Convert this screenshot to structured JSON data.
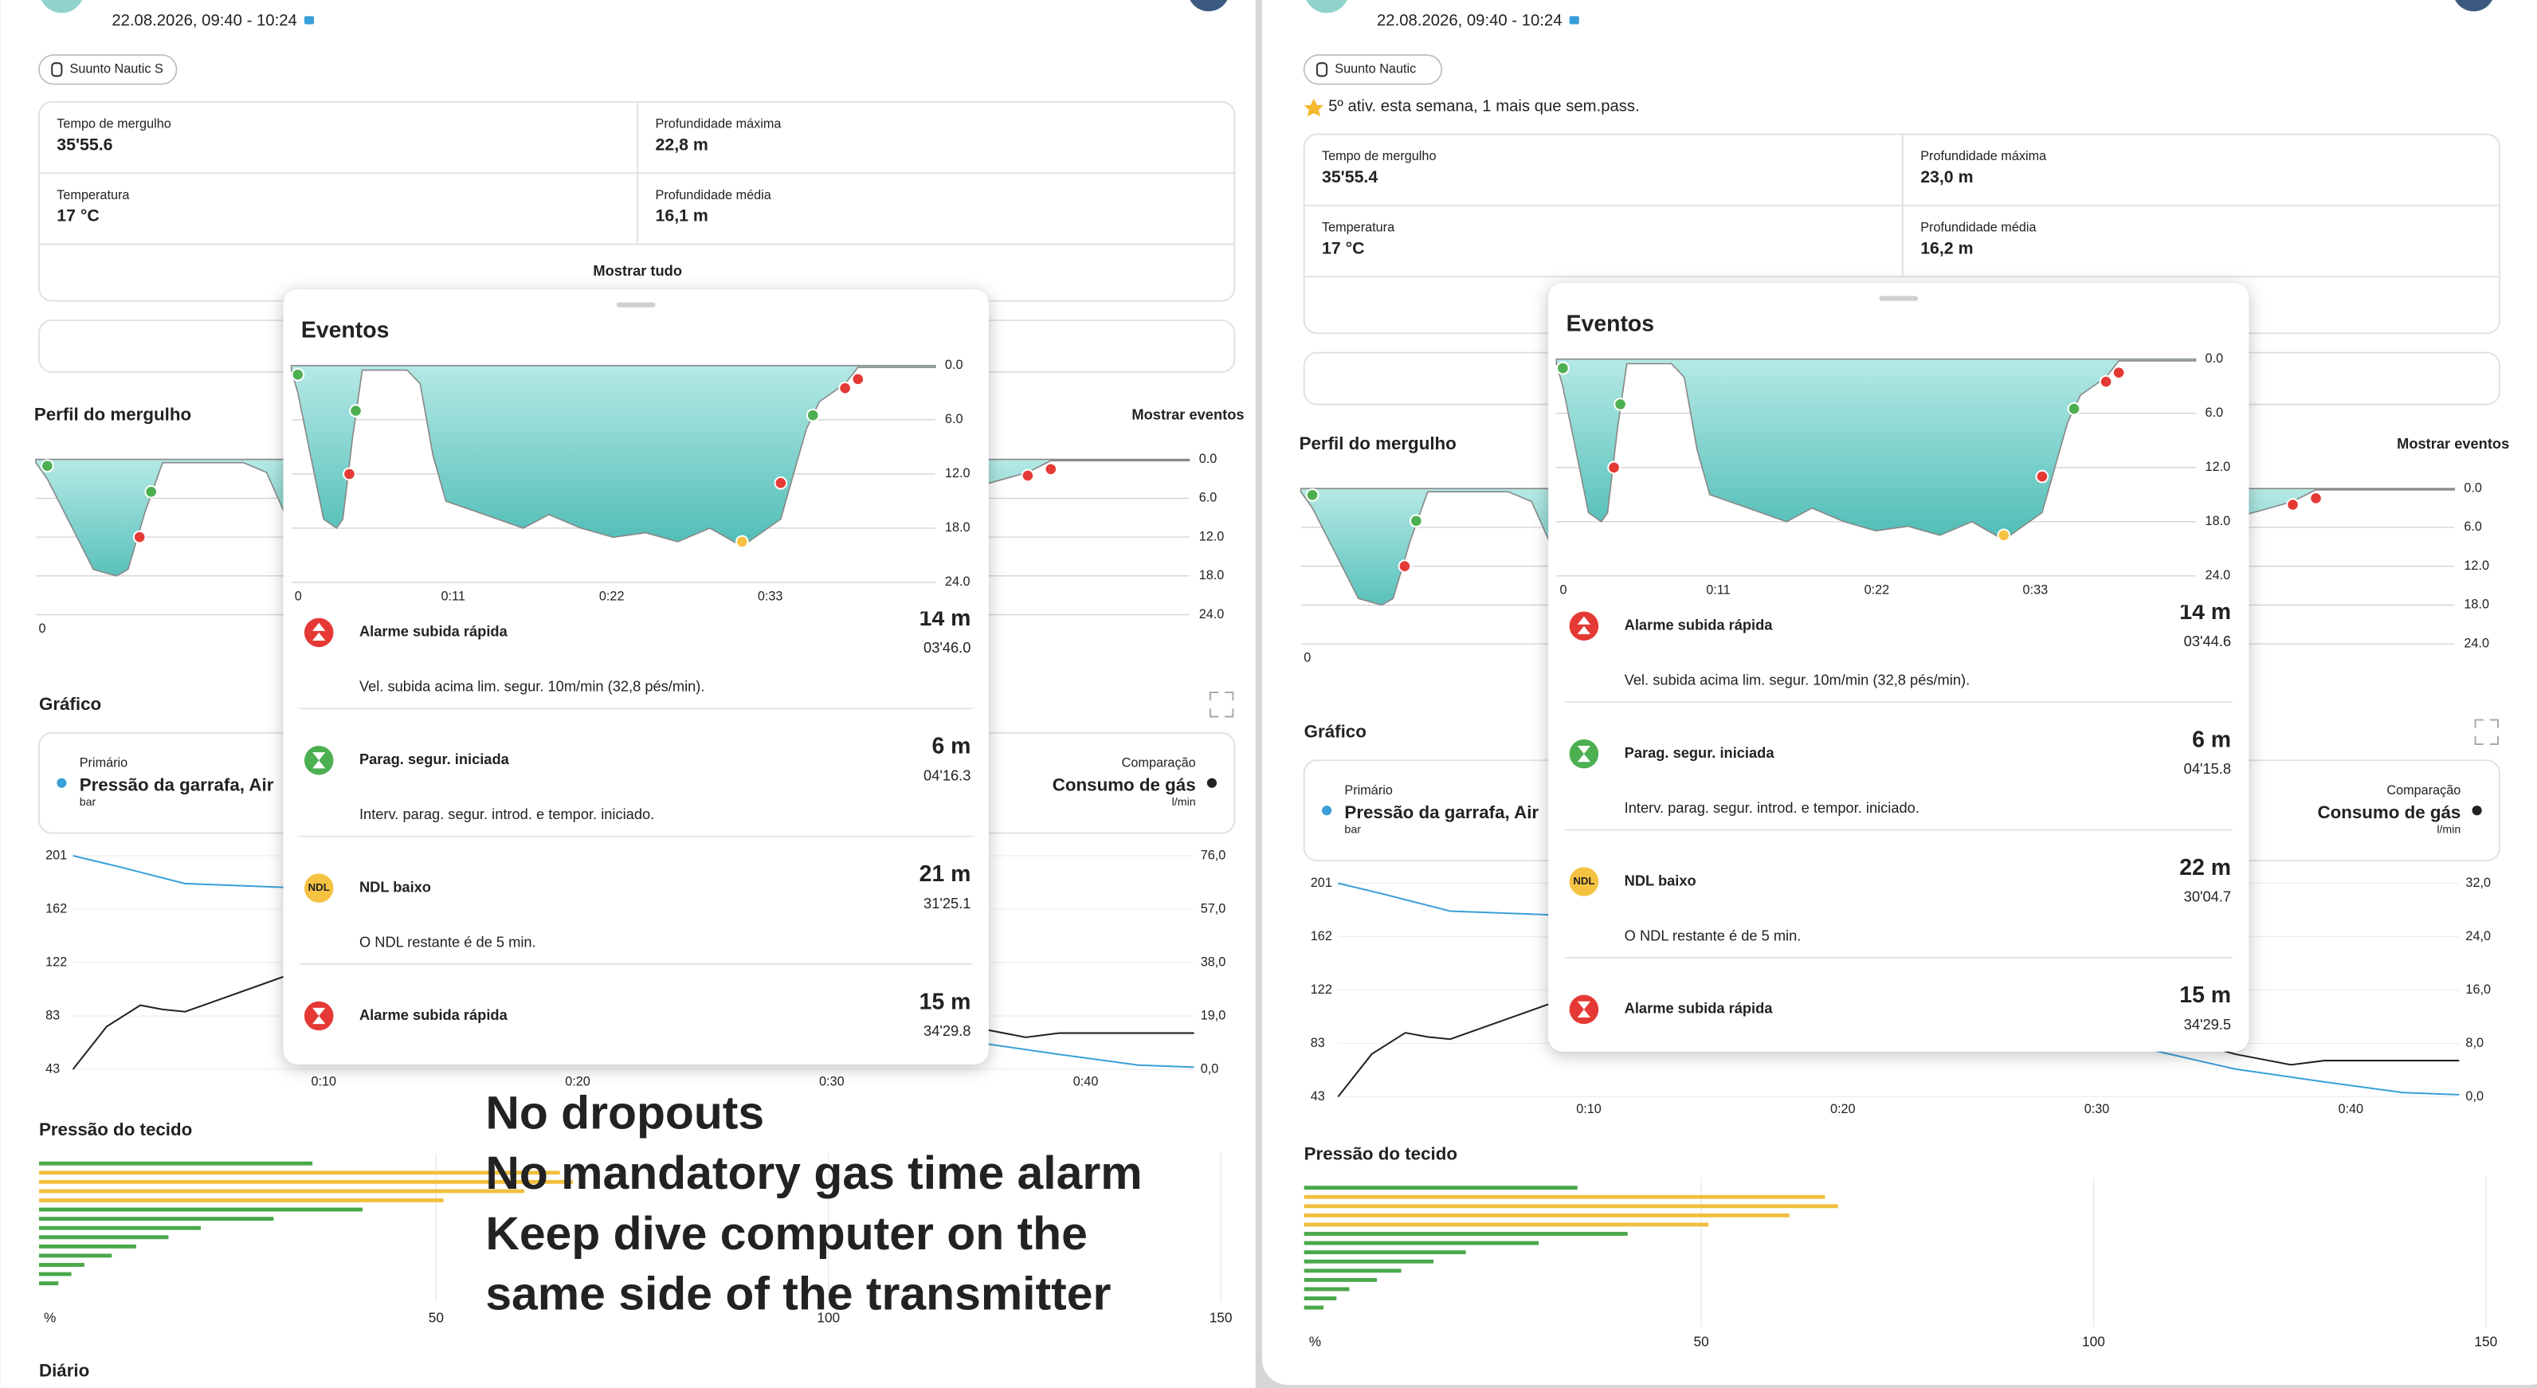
{
  "panels": [
    {
      "date": "22.08.2026, 09:40 - 10:24",
      "device": "Suunto Nautic S",
      "stats": [
        {
          "label": "Tempo de mergulho",
          "value": "35'55.6"
        },
        {
          "label": "Profundidade máxima",
          "value": "22,8 m"
        },
        {
          "label": "Temperatura",
          "value": "17 °C"
        },
        {
          "label": "Profundidade média",
          "value": "16,1 m"
        }
      ],
      "show_all": "Mostrar tudo",
      "profile": {
        "title": "Perfil do mergulho",
        "link": "Mostrar eventos",
        "yticks": [
          "0.0",
          "6.0",
          "12.0",
          "18.0",
          "24.0"
        ],
        "xticks": [
          "0"
        ]
      },
      "graph": {
        "title": "Gráfico",
        "primary": {
          "label": "Primário",
          "name": "Pressão da garrafa, Air",
          "unit": "bar"
        },
        "comparison": {
          "label": "Comparação",
          "name": "Consumo de gás",
          "unit": "l/min"
        },
        "yticks": [
          "201",
          "162",
          "122",
          "83",
          "43"
        ],
        "y2ticks": [
          "76,0",
          "57,0",
          "38,0",
          "19,0",
          "0,0"
        ],
        "xticks": [
          "0:10",
          "0:20",
          "0:30",
          "0:40"
        ]
      },
      "tissue": {
        "title": "Pressão do tecido",
        "xticks": [
          "%",
          "50",
          "100",
          "150"
        ]
      },
      "diary": "Diário",
      "events": {
        "title": "Eventos",
        "xticks": [
          "0",
          "0:11",
          "0:22",
          "0:33"
        ],
        "yticks": [
          "0.0",
          "6.0",
          "12.0",
          "18.0",
          "24.0"
        ],
        "items": [
          {
            "title": "Alarme subida rápida",
            "depth": "14 m",
            "time": "03'46.0",
            "desc": "Vel. subida acima lim. segur. 10m/min (32,8 pés/min).",
            "color": "#e53935"
          },
          {
            "title": "Parag. segur. iniciada",
            "depth": "6 m",
            "time": "04'16.3",
            "desc": "Interv. parag. segur. introd. e tempor. iniciado.",
            "color": "#4caf50"
          },
          {
            "title": "NDL baixo",
            "depth": "21 m",
            "time": "31'25.1",
            "desc": "O NDL restante é de 5 min.",
            "color": "#f5c242",
            "badge": "NDL"
          },
          {
            "title": "Alarme subida rápida",
            "depth": "15 m",
            "time": "34'29.8",
            "color": "#e53935"
          }
        ]
      }
    },
    {
      "date": "22.08.2026, 09:40 - 10:24",
      "device": "Suunto Nautic",
      "streak": "5º ativ. esta semana, 1 mais que sem.pass.",
      "stats": [
        {
          "label": "Tempo de mergulho",
          "value": "35'55.4"
        },
        {
          "label": "Profundidade máxima",
          "value": "23,0 m"
        },
        {
          "label": "Temperatura",
          "value": "17 °C"
        },
        {
          "label": "Profundidade média",
          "value": "16,2 m"
        }
      ],
      "profile": {
        "title": "Perfil do mergulho",
        "link": "Mostrar eventos",
        "yticks": [
          "0.0",
          "6.0",
          "12.0",
          "18.0",
          "24.0"
        ],
        "xticks": [
          "0"
        ]
      },
      "graph": {
        "title": "Gráfico",
        "primary": {
          "label": "Primário",
          "name": "Pressão da garrafa, Air",
          "unit": "bar"
        },
        "comparison": {
          "label": "Comparação",
          "name": "Consumo de gás",
          "unit": "l/min"
        },
        "yticks": [
          "201",
          "162",
          "122",
          "83",
          "43"
        ],
        "y2ticks": [
          "32,0",
          "24,0",
          "16,0",
          "8,0",
          "0,0"
        ],
        "xticks": [
          "0:10",
          "0:20",
          "0:30",
          "0:40"
        ]
      },
      "tissue": {
        "title": "Pressão do tecido",
        "xticks": [
          "%",
          "50",
          "100",
          "150"
        ]
      },
      "events": {
        "title": "Eventos",
        "xticks": [
          "0",
          "0:11",
          "0:22",
          "0:33"
        ],
        "yticks": [
          "0.0",
          "6.0",
          "12.0",
          "18.0",
          "24.0"
        ],
        "items": [
          {
            "title": "Alarme subida rápida",
            "depth": "14 m",
            "time": "03'44.6",
            "desc": "Vel. subida acima lim. segur. 10m/min (32,8 pés/min).",
            "color": "#e53935"
          },
          {
            "title": "Parag. segur. iniciada",
            "depth": "6 m",
            "time": "04'15.8",
            "desc": "Interv. parag. segur. introd. e tempor. iniciado.",
            "color": "#4caf50"
          },
          {
            "title": "NDL baixo",
            "depth": "22 m",
            "time": "30'04.7",
            "desc": "O NDL restante é de 5 min.",
            "color": "#f5c242",
            "badge": "NDL"
          },
          {
            "title": "Alarme subida rápida",
            "depth": "15 m",
            "time": "34'29.5",
            "color": "#e53935"
          }
        ]
      }
    }
  ],
  "annotation": [
    "No dropouts",
    "No mandatory gas time alarm",
    "Keep dive computer on the",
    "same side of the transmitter"
  ]
}
